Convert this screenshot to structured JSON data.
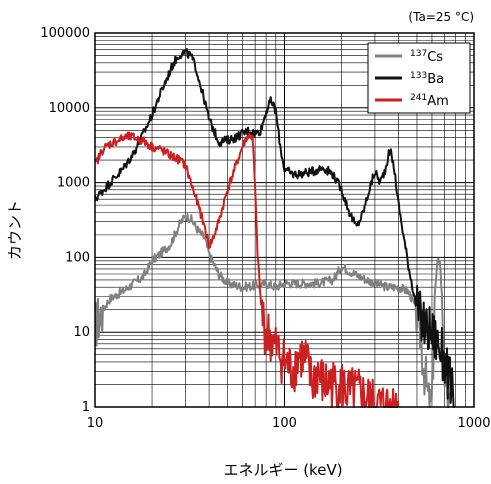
{
  "chart_data": {
    "type": "line",
    "annotation": "(Ta=25 °C)",
    "xlabel": "エネルギー (keV)",
    "ylabel": "カウント",
    "x_scale": "log",
    "y_scale": "log",
    "xlim": [
      10,
      1000
    ],
    "ylim": [
      1,
      100000
    ],
    "x_ticks": [
      10,
      100,
      1000
    ],
    "x_tick_labels": [
      "10",
      "100",
      "1000"
    ],
    "y_ticks": [
      1,
      10,
      100,
      1000,
      10000,
      100000
    ],
    "y_tick_labels": [
      "1",
      "10",
      "100",
      "1000",
      "10000",
      "100000"
    ],
    "grid": true,
    "legend_position": "top-right",
    "series": [
      {
        "mass": "137",
        "element": "Cs",
        "color": "#808080",
        "x": [
          10,
          11,
          12,
          14,
          16,
          18,
          20,
          22,
          25,
          28,
          30,
          32,
          35,
          38,
          40,
          45,
          50,
          60,
          70,
          80,
          90,
          100,
          120,
          150,
          180,
          200,
          250,
          300,
          350,
          400,
          450,
          480,
          500,
          520,
          540,
          560,
          580,
          600,
          620,
          640,
          660,
          680,
          700,
          720,
          740
        ],
        "y": [
          12,
          20,
          28,
          35,
          45,
          55,
          90,
          110,
          150,
          280,
          360,
          330,
          230,
          180,
          110,
          60,
          45,
          40,
          42,
          45,
          40,
          45,
          45,
          45,
          50,
          75,
          55,
          45,
          40,
          40,
          35,
          25,
          18,
          10,
          4,
          2,
          1,
          1,
          30,
          80,
          100,
          25,
          3,
          1,
          1
        ]
      },
      {
        "mass": "133",
        "element": "Ba",
        "color": "#111111",
        "x": [
          10,
          12,
          14,
          16,
          18,
          20,
          22,
          24,
          26,
          28,
          30,
          32,
          34,
          36,
          38,
          40,
          45,
          50,
          55,
          60,
          65,
          70,
          75,
          80,
          85,
          90,
          95,
          100,
          110,
          120,
          140,
          160,
          180,
          200,
          220,
          240,
          260,
          280,
          300,
          320,
          340,
          360,
          380,
          400,
          450,
          500,
          550,
          600,
          650,
          700,
          750,
          790
        ],
        "y": [
          600,
          1000,
          1500,
          2500,
          4500,
          8000,
          15000,
          25000,
          40000,
          52000,
          55000,
          50000,
          35000,
          20000,
          12000,
          7000,
          3500,
          3700,
          4000,
          4500,
          5000,
          4500,
          5000,
          9000,
          12500,
          9000,
          3000,
          1500,
          1300,
          1300,
          1400,
          1600,
          1300,
          800,
          400,
          250,
          400,
          800,
          1400,
          1000,
          1500,
          2800,
          1500,
          500,
          80,
          20,
          12,
          10,
          7,
          4,
          2,
          1
        ]
      },
      {
        "mass": "241",
        "element": "Am",
        "color": "#cc1f1f",
        "x": [
          10,
          11,
          12,
          14,
          15,
          16,
          18,
          20,
          22,
          25,
          28,
          30,
          33,
          35,
          38,
          40,
          42,
          45,
          50,
          55,
          60,
          63,
          66,
          68,
          70,
          72,
          75,
          78,
          80,
          85,
          90,
          95,
          100,
          110,
          120,
          130,
          140,
          150,
          160,
          170,
          180,
          200,
          220,
          250,
          280,
          300,
          350,
          400
        ],
        "y": [
          1700,
          2800,
          3300,
          3900,
          4100,
          4000,
          3600,
          3000,
          2800,
          2300,
          2000,
          1700,
          800,
          500,
          250,
          140,
          180,
          300,
          800,
          1600,
          3000,
          4000,
          4300,
          3800,
          800,
          120,
          25,
          12,
          10,
          8,
          6,
          5,
          4,
          3,
          5,
          4,
          2,
          3,
          2,
          2,
          2,
          2,
          1.5,
          1.5,
          1.2,
          1,
          1,
          1
        ]
      }
    ]
  }
}
